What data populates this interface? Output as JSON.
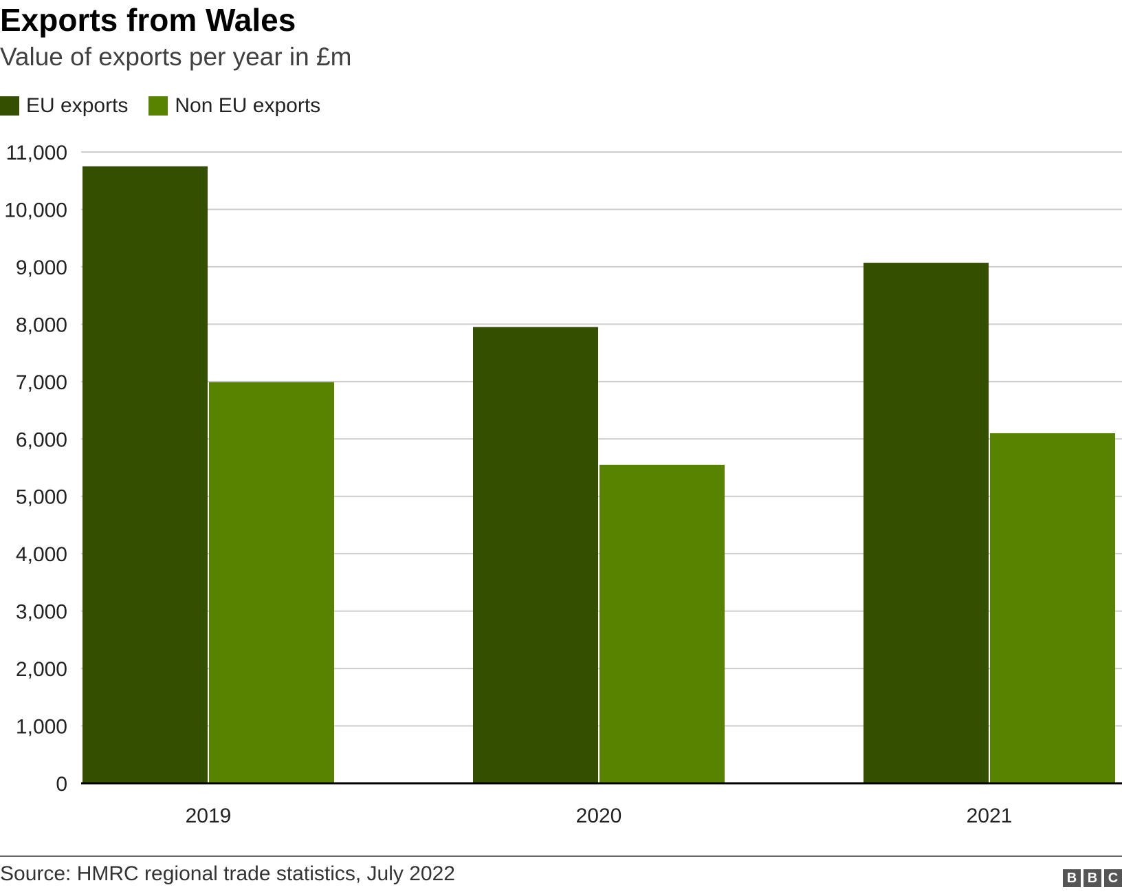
{
  "chart_data": {
    "type": "bar",
    "title": "Exports from Wales",
    "subtitle": "Value of exports per year in £m",
    "categories": [
      "2019",
      "2020",
      "2021"
    ],
    "series": [
      {
        "name": "EU exports",
        "color": "#354f00",
        "values": [
          10750,
          7950,
          9070
        ]
      },
      {
        "name": "Non EU exports",
        "color": "#588300",
        "values": [
          6990,
          5550,
          6100
        ]
      }
    ],
    "ylim": [
      0,
      11000
    ],
    "yticks": [
      0,
      1000,
      2000,
      3000,
      4000,
      5000,
      6000,
      7000,
      8000,
      9000,
      10000,
      11000
    ],
    "ytick_labels": [
      "0",
      "1,000",
      "2,000",
      "3,000",
      "4,000",
      "5,000",
      "6,000",
      "7,000",
      "8,000",
      "9,000",
      "10,000",
      "11,000"
    ],
    "xlabel": "",
    "ylabel": "",
    "grid": true,
    "legend_position": "top-left"
  },
  "footer": {
    "source": "Source: HMRC regional trade statistics, July 2022",
    "logo": [
      "B",
      "B",
      "C"
    ]
  }
}
